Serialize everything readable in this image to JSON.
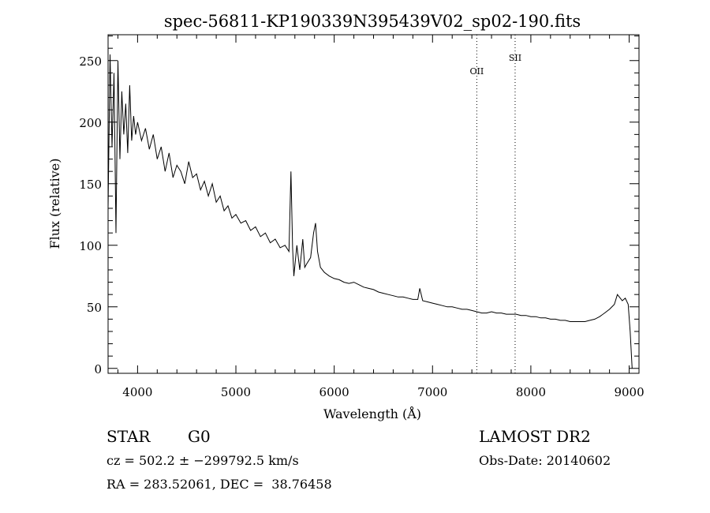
{
  "chart_data": {
    "type": "line",
    "title": "spec-56811-KP190339N395439V02_sp02-190.fits",
    "xlabel": "Wavelength (Å)",
    "ylabel": "Flux (relative)",
    "xlim": [
      3700,
      9100
    ],
    "ylim": [
      -4,
      271
    ],
    "x_ticks": [
      "4000",
      "5000",
      "6000",
      "7000",
      "8000",
      "9000"
    ],
    "x_tick_values": [
      4000,
      5000,
      6000,
      7000,
      8000,
      9000
    ],
    "y_ticks": [
      "0",
      "50",
      "100",
      "150",
      "200",
      "250"
    ],
    "y_tick_values": [
      0,
      50,
      100,
      150,
      200,
      250
    ],
    "grid": false,
    "annotations": [
      {
        "label": "OII",
        "x": 7450,
        "y": 239
      },
      {
        "label": "SII",
        "x": 7840,
        "y": 250
      }
    ],
    "series": [
      {
        "x": [
          3700,
          3720,
          3740,
          3760,
          3780,
          3800,
          3820,
          3840,
          3860,
          3880,
          3900,
          3920,
          3940,
          3960,
          3980,
          4000,
          4040,
          4080,
          4120,
          4160,
          4200,
          4240,
          4280,
          4320,
          4360,
          4400,
          4440,
          4480,
          4520,
          4560,
          4600,
          4640,
          4680,
          4720,
          4760,
          4800,
          4840,
          4880,
          4920,
          4960,
          5000,
          5050,
          5100,
          5150,
          5200,
          5250,
          5300,
          5350,
          5400,
          5450,
          5500,
          5540,
          5560,
          5577,
          5590,
          5620,
          5650,
          5680,
          5700,
          5720,
          5760,
          5790,
          5810,
          5830,
          5860,
          5900,
          5950,
          6000,
          6050,
          6100,
          6150,
          6200,
          6250,
          6300,
          6350,
          6400,
          6450,
          6500,
          6550,
          6600,
          6650,
          6700,
          6750,
          6800,
          6850,
          6870,
          6900,
          6950,
          7000,
          7050,
          7100,
          7150,
          7200,
          7250,
          7300,
          7350,
          7400,
          7450,
          7500,
          7550,
          7600,
          7650,
          7700,
          7750,
          7800,
          7850,
          7900,
          7950,
          8000,
          8050,
          8100,
          8150,
          8200,
          8250,
          8300,
          8350,
          8400,
          8450,
          8500,
          8550,
          8600,
          8650,
          8700,
          8750,
          8800,
          8850,
          8880,
          8900,
          8930,
          8960,
          8990,
          9010,
          9030
        ],
        "values": [
          130,
          255,
          180,
          240,
          110,
          250,
          170,
          225,
          190,
          215,
          175,
          230,
          185,
          205,
          190,
          200,
          185,
          195,
          178,
          190,
          170,
          180,
          160,
          175,
          155,
          165,
          160,
          150,
          168,
          155,
          158,
          145,
          152,
          140,
          150,
          135,
          140,
          128,
          132,
          122,
          125,
          118,
          120,
          112,
          115,
          107,
          110,
          102,
          105,
          98,
          100,
          95,
          160,
          98,
          75,
          100,
          80,
          105,
          82,
          85,
          90,
          110,
          118,
          95,
          82,
          78,
          75,
          73,
          72,
          70,
          69,
          70,
          68,
          66,
          65,
          64,
          62,
          61,
          60,
          59,
          58,
          58,
          57,
          56,
          56,
          65,
          55,
          54,
          53,
          52,
          51,
          50,
          50,
          49,
          48,
          48,
          47,
          46,
          45,
          45,
          46,
          45,
          45,
          44,
          44,
          44,
          43,
          43,
          42,
          42,
          41,
          41,
          40,
          40,
          39,
          39,
          38,
          38,
          38,
          38,
          39,
          40,
          42,
          45,
          48,
          52,
          60,
          58,
          55,
          57,
          52,
          30,
          0
        ]
      }
    ]
  },
  "info": {
    "class_label": "STAR",
    "subclass": "G0",
    "survey": "LAMOST DR2",
    "redshift": "cz = 502.2 ± −299792.5 km/s",
    "obs_date": "Obs-Date: 20140602",
    "coords": "RA = 283.52061, DEC =  38.76458"
  }
}
